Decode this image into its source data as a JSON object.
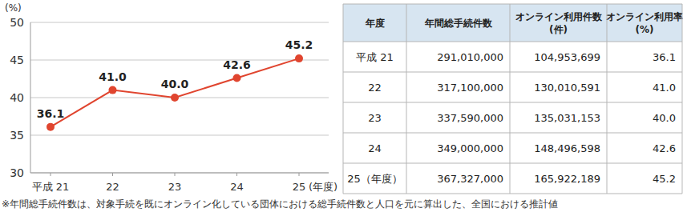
{
  "chart_data": {
    "type": "line",
    "y_label": "(%)",
    "x_label": "(年度)",
    "categories": [
      "平成 21",
      "22",
      "23",
      "24",
      "25"
    ],
    "values": [
      36.1,
      41.0,
      40.0,
      42.6,
      45.2
    ],
    "value_labels": [
      "36.1",
      "41.0",
      "40.0",
      "42.6",
      "45.2"
    ],
    "color": "#e0452f",
    "marker": "circle",
    "ylim": [
      30,
      50
    ],
    "yticks": [
      30,
      35,
      40,
      45,
      50
    ],
    "grid": true,
    "data_labels": true
  },
  "table": {
    "header": [
      "年度",
      "年間総手続件数",
      "オンライン利用件数\n(件)",
      "オンライン利用率\n(%)"
    ],
    "rows": [
      [
        "平成 21",
        "291,010,000",
        "104,953,699",
        "36.1"
      ],
      [
        "22",
        "317,100,000",
        "130,010,591",
        "41.0"
      ],
      [
        "23",
        "337,590,000",
        "135,031,153",
        "40.0"
      ],
      [
        "24",
        "349,000,000",
        "148,496,598",
        "42.6"
      ],
      [
        "25（年度）",
        "367,327,000",
        "165,922,189",
        "45.2"
      ]
    ]
  },
  "note": "※年間総手続件数は、対象手続を既にオンライン化している団体における総手続件数と人口を元に算出した、全国における推計値"
}
